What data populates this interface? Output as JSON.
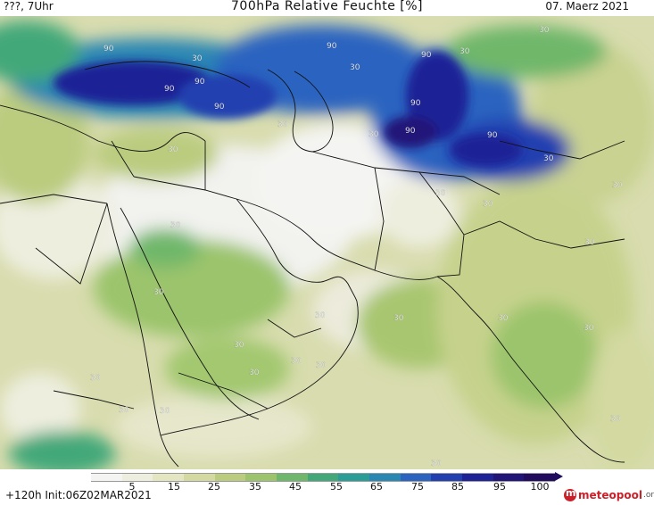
{
  "header": {
    "left": "???, 7Uhr",
    "title": "700hPa Relative Feuchte [%]",
    "right": "07. Maerz 2021"
  },
  "colorbar": {
    "colors": [
      "#f4f4f2",
      "#eeeedf",
      "#e4e6c2",
      "#d3d9a0",
      "#bbcc7f",
      "#9bc46c",
      "#6fb76a",
      "#43a879",
      "#2a9d96",
      "#2a86b3",
      "#2a64c0",
      "#223fb0",
      "#1d2396",
      "#201479",
      "#200b5e"
    ],
    "ticks": [
      "5",
      "15",
      "25",
      "35",
      "45",
      "55",
      "65",
      "75",
      "85",
      "95",
      "100"
    ]
  },
  "contour_labels": {
    "high": "90",
    "low": "30"
  },
  "footer": {
    "run": "+120h  Init:06Z02MAR2021",
    "brand": "meteopool",
    "brand_tld": ".org"
  }
}
